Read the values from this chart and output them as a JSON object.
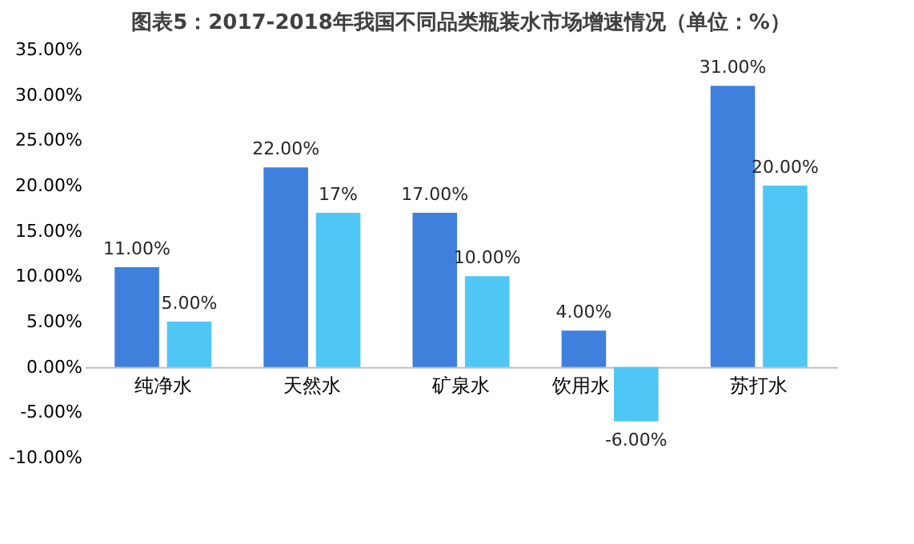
{
  "chart_data": {
    "type": "bar",
    "title": "图表5：2017-2018年我国不同品类瓶装水市场增速情况（单位：%）",
    "categories": [
      "纯净水",
      "天然水",
      "矿泉水",
      "饮用水",
      "苏打水"
    ],
    "series": [
      {
        "color": "#3f80dc",
        "values": [
          11,
          22,
          17,
          4,
          31
        ],
        "value_labels": [
          "11.00%",
          "22.00%",
          "17.00%",
          "4.00%",
          "31.00%"
        ]
      },
      {
        "color": "#4fc6f4",
        "values": [
          5,
          17,
          10,
          -6,
          20
        ],
        "value_labels": [
          "5.00%",
          "17%",
          "10.00%",
          "-6.00%",
          "20.00%"
        ]
      }
    ],
    "ylim": [
      -10,
      35
    ],
    "yticks": [
      {
        "value": -10,
        "label": "-10.00%"
      },
      {
        "value": -5,
        "label": "-5.00%"
      },
      {
        "value": 0,
        "label": "0.00%"
      },
      {
        "value": 5,
        "label": "5.00%"
      },
      {
        "value": 10,
        "label": "10.00%"
      },
      {
        "value": 15,
        "label": "15.00%"
      },
      {
        "value": 20,
        "label": "20.00%"
      },
      {
        "value": 25,
        "label": "25.00%"
      },
      {
        "value": 30,
        "label": "30.00%"
      },
      {
        "value": 35,
        "label": "35.00%"
      }
    ],
    "grid": false,
    "legend": false
  }
}
